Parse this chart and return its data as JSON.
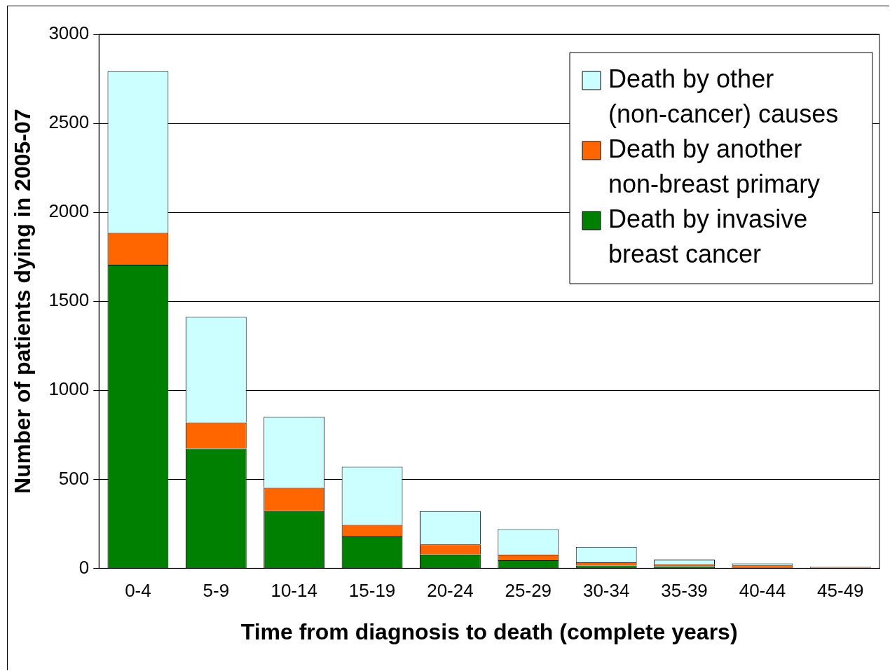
{
  "chart_data": {
    "type": "bar",
    "stacked": true,
    "xlabel": "Time from diagnosis to death (complete years)",
    "ylabel": "Number of patients dying in 2005-07",
    "categories": [
      "0-4",
      "5-9",
      "10-14",
      "15-19",
      "20-24",
      "25-29",
      "30-34",
      "35-39",
      "40-44",
      "45-49"
    ],
    "series": [
      {
        "name": "Death by invasive breast cancer",
        "color": "#008000",
        "values": [
          1705,
          672,
          321,
          179,
          77,
          45,
          15,
          11,
          2,
          2
        ]
      },
      {
        "name": "Death by another non-breast primary",
        "color": "#ff6600",
        "values": [
          179,
          146,
          131,
          65,
          57,
          32,
          18,
          11,
          14,
          3
        ]
      },
      {
        "name": "Death by other (non-cancer) causes",
        "color": "#ccffff",
        "values": [
          908,
          594,
          399,
          326,
          187,
          143,
          88,
          27,
          11,
          3
        ]
      }
    ],
    "ylim": [
      0,
      3000
    ],
    "yticks": [
      0,
      500,
      1000,
      1500,
      2000,
      2500,
      3000
    ],
    "grid": "y",
    "legend": "top right"
  }
}
